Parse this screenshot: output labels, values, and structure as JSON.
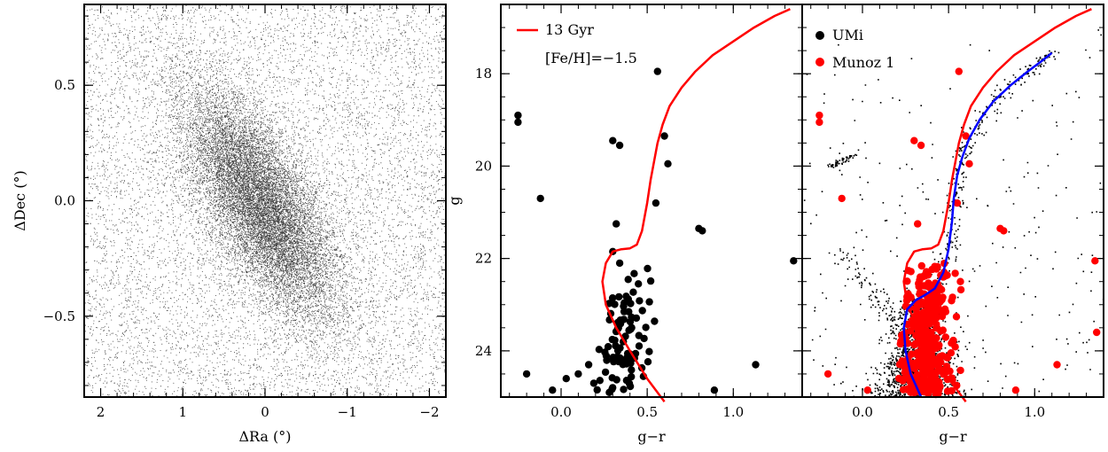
{
  "chart_data": [
    {
      "type": "scatter",
      "panel": "left",
      "xlabel": "ΔRa (°)",
      "ylabel": "ΔDec (°)",
      "xlim": [
        2.2,
        -2.2
      ],
      "ylim": [
        -0.85,
        0.85
      ],
      "xticks": [
        2,
        1,
        0,
        -1,
        -2
      ],
      "xticklabels": [
        "2",
        "1",
        "0",
        "−1",
        "−2"
      ],
      "yticks": [
        0.5,
        0.0,
        -0.5
      ],
      "yticklabels": [
        "0.5",
        "0.0",
        "−0.5"
      ],
      "grid": false,
      "point_color": "#000000",
      "description_points": "dense stellar field; elongated overdensity centered near (0, 0) tilted from upper-left to lower-right; small clump near (-1.9, -0.25)",
      "field": {
        "background_count": 9000,
        "core_count": 14000,
        "core_center": [
          0.05,
          -0.02
        ],
        "core_sigma_major": 0.5,
        "core_sigma_minor": 0.17,
        "core_angle_deg": -22,
        "clump_center": [
          -1.9,
          -0.25
        ],
        "clump_count": 25
      }
    },
    {
      "type": "scatter",
      "panel": "middle",
      "xlabel": "g−r",
      "ylabel": "g",
      "xlim": [
        -0.35,
        1.4
      ],
      "ylim": [
        25.0,
        16.5
      ],
      "xticks": [
        0.0,
        0.5,
        1.0
      ],
      "xticklabels": [
        "0.0",
        "0.5",
        "1.0"
      ],
      "yticks": [
        18,
        20,
        22,
        24
      ],
      "yticklabels": [
        "18",
        "20",
        "22",
        "24"
      ],
      "legend_position": "top-left",
      "series": [
        {
          "name": "13 Gyr",
          "kind": "line",
          "color": "#ff0000",
          "x": [
            0.6,
            0.5,
            0.4,
            0.32,
            0.26,
            0.24,
            0.26,
            0.3,
            0.35,
            0.4,
            0.44,
            0.47,
            0.5,
            0.52,
            0.54,
            0.56,
            0.59,
            0.63,
            0.7,
            0.78,
            0.88,
            1.0,
            1.12,
            1.24,
            1.33
          ],
          "y": [
            25.1,
            24.6,
            24.0,
            23.5,
            23.0,
            22.5,
            22.1,
            21.85,
            21.8,
            21.78,
            21.7,
            21.4,
            20.8,
            20.3,
            19.9,
            19.5,
            19.1,
            18.7,
            18.3,
            17.95,
            17.6,
            17.3,
            17.0,
            16.75,
            16.6
          ]
        },
        {
          "name": "",
          "kind": "points",
          "color": "#000000",
          "x": [
            -0.25,
            -0.25,
            -0.12,
            0.3,
            0.34,
            0.32,
            0.56,
            0.6,
            0.62,
            0.55,
            0.8,
            0.82,
            1.35,
            0.3,
            0.34,
            1.13,
            0.89,
            -0.2,
            -0.05,
            0.03,
            0.1,
            0.16,
            0.19,
            0.28
          ],
          "y": [
            18.9,
            19.05,
            20.7,
            19.45,
            19.55,
            21.25,
            17.95,
            19.35,
            19.95,
            20.8,
            21.35,
            21.4,
            22.05,
            21.85,
            22.1,
            24.3,
            24.85,
            24.5,
            24.85,
            24.6,
            24.5,
            24.3,
            24.7,
            24.9
          ],
          "cloud": {
            "count": 85,
            "x_mean": 0.37,
            "x_sd": 0.09,
            "x_shift_per_mag": 0.02,
            "y_min": 22.2,
            "y_max": 24.9
          }
        }
      ],
      "legend": [
        {
          "label": "13 Gyr",
          "color": "#ff0000",
          "symbol": "line"
        },
        {
          "label": "[Fe/H]=−1.5",
          "color": "",
          "symbol": "none"
        }
      ]
    },
    {
      "type": "scatter",
      "panel": "right",
      "xlabel": "g−r",
      "ylabel": "",
      "xlim": [
        -0.35,
        1.4
      ],
      "ylim": [
        25.0,
        16.5
      ],
      "xticks": [
        0.0,
        0.5,
        1.0
      ],
      "xticklabels": [
        "0.0",
        "0.5",
        "1.0"
      ],
      "yticks": [
        18,
        20,
        22,
        24
      ],
      "legend_position": "top-left",
      "series": [
        {
          "name": "UMi",
          "kind": "points",
          "color": "#000000",
          "cloud": {
            "ms_count": 1500,
            "rgb_count": 320,
            "hb_x": [
              -0.2,
              -0.05
            ],
            "hb_y": [
              20.0,
              19.75
            ],
            "hb_count": 60,
            "blue_plume_count": 90,
            "field_count": 260
          }
        },
        {
          "name": "Munoz 1",
          "kind": "points",
          "color": "#ff0000",
          "x": [
            -0.25,
            -0.25,
            -0.12,
            0.3,
            0.34,
            0.32,
            0.56,
            0.6,
            0.62,
            0.55,
            0.8,
            0.82,
            1.35,
            1.36,
            1.13,
            0.89,
            -0.2,
            0.03,
            0.28
          ],
          "y": [
            18.9,
            19.05,
            20.7,
            19.45,
            19.55,
            21.25,
            17.95,
            19.35,
            19.95,
            20.8,
            21.35,
            21.4,
            22.05,
            23.6,
            24.3,
            24.85,
            24.5,
            24.85,
            24.9
          ],
          "cloud": {
            "count": 330,
            "x_mean": 0.38,
            "x_sd": 0.1,
            "x_shift_per_mag": 0.02,
            "y_min": 22.1,
            "y_max": 24.95
          }
        },
        {
          "name": "13 Gyr",
          "kind": "line",
          "color": "#ff0000",
          "x": [
            0.6,
            0.5,
            0.4,
            0.32,
            0.26,
            0.24,
            0.26,
            0.3,
            0.35,
            0.4,
            0.44,
            0.47,
            0.5,
            0.52,
            0.54,
            0.56,
            0.59,
            0.63,
            0.7,
            0.78,
            0.88,
            1.0,
            1.12,
            1.24,
            1.33
          ],
          "y": [
            25.1,
            24.6,
            24.0,
            23.5,
            23.0,
            22.5,
            22.1,
            21.85,
            21.8,
            21.78,
            21.7,
            21.4,
            20.8,
            20.3,
            19.9,
            19.5,
            19.1,
            18.7,
            18.3,
            17.95,
            17.6,
            17.3,
            17.0,
            16.75,
            16.6
          ]
        },
        {
          "name": "",
          "kind": "line",
          "color": "#0000ff",
          "x": [
            0.34,
            0.28,
            0.25,
            0.24,
            0.26,
            0.31,
            0.36,
            0.42,
            0.47,
            0.5,
            0.52,
            0.53,
            0.55,
            0.58,
            0.62,
            0.68,
            0.76,
            0.86,
            0.96,
            1.05,
            1.1
          ],
          "y": [
            25.0,
            24.5,
            24.0,
            23.5,
            23.1,
            22.9,
            22.8,
            22.65,
            22.3,
            21.8,
            21.2,
            20.7,
            20.2,
            19.8,
            19.4,
            19.0,
            18.6,
            18.25,
            17.95,
            17.7,
            17.55
          ]
        }
      ],
      "legend": [
        {
          "label": "UMi",
          "color": "#000000",
          "symbol": "circle"
        },
        {
          "label": "Munoz 1",
          "color": "#ff0000",
          "symbol": "circle"
        }
      ]
    }
  ]
}
